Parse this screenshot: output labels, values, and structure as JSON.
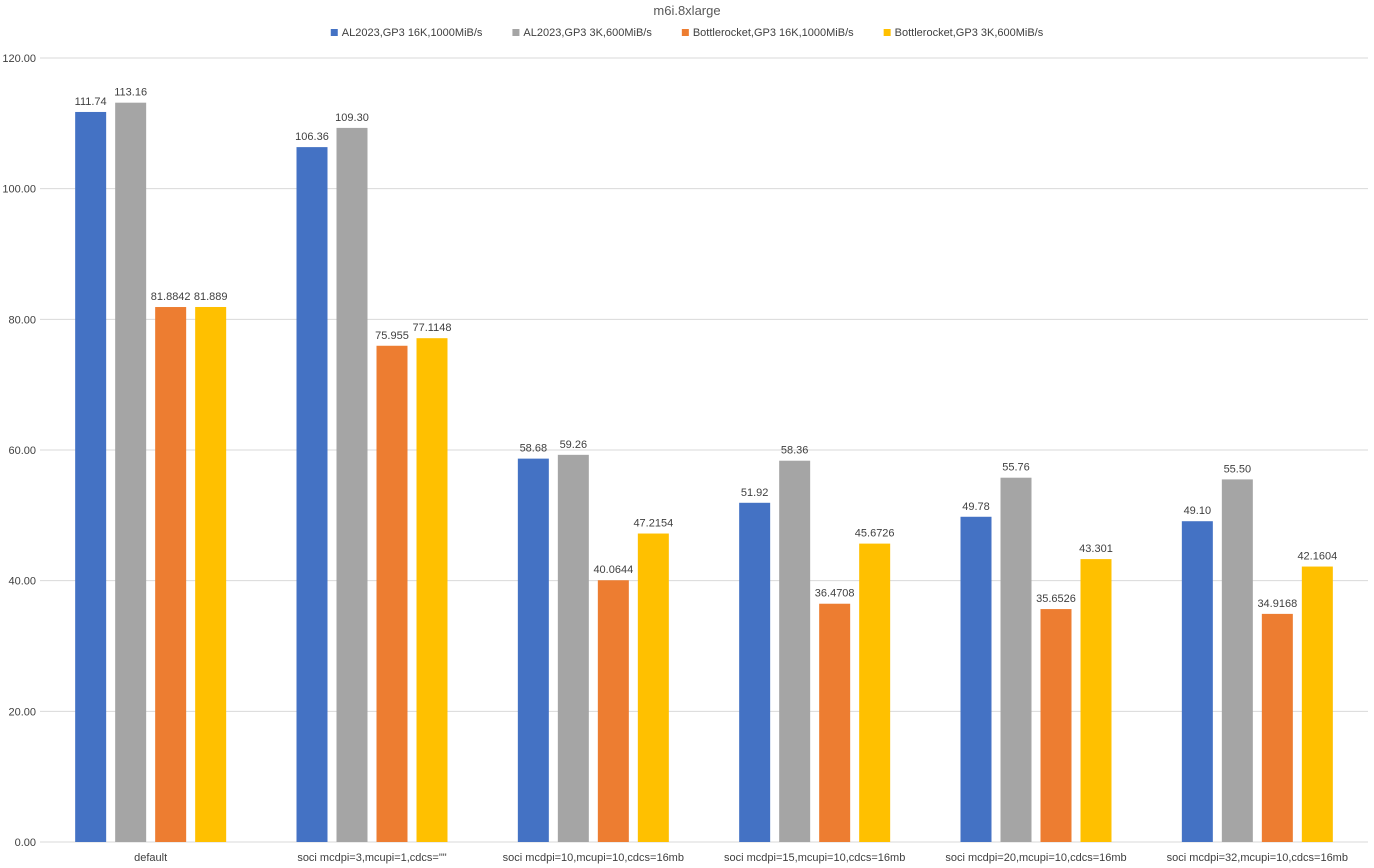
{
  "chart_data": {
    "type": "bar",
    "title": "m6i.8xlarge",
    "xlabel": "",
    "ylabel": "",
    "ylim": [
      0,
      120
    ],
    "yticks": [
      "0.00",
      "20.00",
      "40.00",
      "60.00",
      "80.00",
      "100.00",
      "120.00"
    ],
    "grid": true,
    "legend_position": "top",
    "categories": [
      "default",
      "soci mcdpi=3,mcupi=1,cdcs=\"\"",
      "soci mcdpi=10,mcupi=10,cdcs=16mb",
      "soci mcdpi=15,mcupi=10,cdcs=16mb",
      "soci mcdpi=20,mcupi=10,cdcs=16mb",
      "soci mcdpi=32,mcupi=10,cdcs=16mb"
    ],
    "series": [
      {
        "name": "AL2023,GP3 16K,1000MiB/s",
        "color": "#4472c4",
        "values": [
          111.74,
          106.36,
          58.68,
          51.92,
          49.78,
          49.1
        ],
        "labels": [
          "111.74",
          "106.36",
          "58.68",
          "51.92",
          "49.78",
          "49.10"
        ]
      },
      {
        "name": "AL2023,GP3 3K,600MiB/s",
        "color": "#a5a5a5",
        "values": [
          113.16,
          109.3,
          59.26,
          58.36,
          55.76,
          55.5
        ],
        "labels": [
          "113.16",
          "109.30",
          "59.26",
          "58.36",
          "55.76",
          "55.50"
        ]
      },
      {
        "name": "Bottlerocket,GP3 16K,1000MiB/s",
        "color": "#ed7d31",
        "values": [
          81.8842,
          75.955,
          40.0644,
          36.4708,
          35.6526,
          34.9168
        ],
        "labels": [
          "81.8842",
          "75.955",
          "40.0644",
          "36.4708",
          "35.6526",
          "34.9168"
        ]
      },
      {
        "name": "Bottlerocket,GP3 3K,600MiB/s",
        "color": "#ffc000",
        "values": [
          81.889,
          77.1148,
          47.2154,
          45.6726,
          43.301,
          42.1604
        ],
        "labels": [
          "81.889",
          "77.1148",
          "47.2154",
          "45.6726",
          "43.301",
          "42.1604"
        ]
      }
    ]
  }
}
